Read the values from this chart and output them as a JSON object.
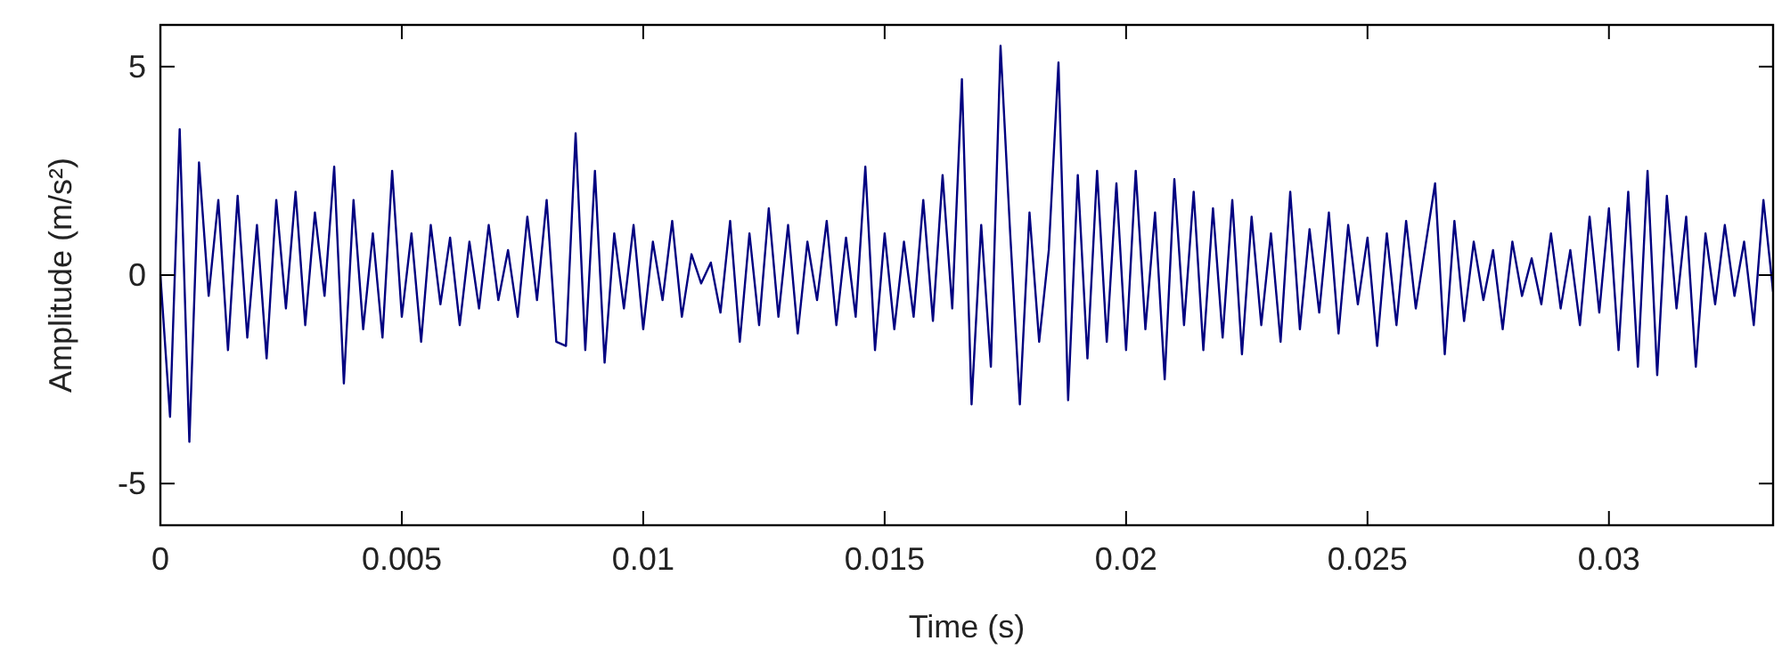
{
  "chart_data": {
    "type": "line",
    "xlabel": "Time (s)",
    "ylabel": "Amplitude (m/s²)",
    "xlim": [
      0,
      0.0334
    ],
    "ylim": [
      -6,
      6
    ],
    "xticks": [
      0,
      0.005,
      0.01,
      0.015,
      0.02,
      0.025,
      0.03
    ],
    "yticks": [
      -5,
      0,
      5
    ],
    "grid": false,
    "marker": "none",
    "line_style": "solid",
    "x": [
      0,
      0.0002,
      0.0004,
      0.0006,
      0.0008,
      0.001,
      0.0012,
      0.0014,
      0.0016,
      0.0018,
      0.002,
      0.0022,
      0.0024,
      0.0026,
      0.0028,
      0.003,
      0.0032,
      0.0034,
      0.0036,
      0.0038,
      0.004,
      0.0042,
      0.0044,
      0.0046,
      0.0048,
      0.005,
      0.0052,
      0.0054,
      0.0056,
      0.0058,
      0.006,
      0.0062,
      0.0064,
      0.0066,
      0.0068,
      0.007,
      0.0072,
      0.0074,
      0.0076,
      0.0078,
      0.008,
      0.0082,
      0.0084,
      0.0086,
      0.0088,
      0.009,
      0.0092,
      0.0094,
      0.0096,
      0.0098,
      0.01,
      0.0102,
      0.0104,
      0.0106,
      0.0108,
      0.011,
      0.0112,
      0.0114,
      0.0116,
      0.0118,
      0.012,
      0.0122,
      0.0124,
      0.0126,
      0.0128,
      0.013,
      0.0132,
      0.0134,
      0.0136,
      0.0138,
      0.014,
      0.0142,
      0.0144,
      0.0146,
      0.0148,
      0.015,
      0.0152,
      0.0154,
      0.0156,
      0.0158,
      0.016,
      0.0162,
      0.0164,
      0.0166,
      0.0168,
      0.017,
      0.0172,
      0.0174,
      0.0176,
      0.0178,
      0.018,
      0.0182,
      0.0184,
      0.0186,
      0.0188,
      0.019,
      0.0192,
      0.0194,
      0.0196,
      0.0198,
      0.02,
      0.0202,
      0.0204,
      0.0206,
      0.0208,
      0.021,
      0.0212,
      0.0214,
      0.0216,
      0.0218,
      0.022,
      0.0222,
      0.0224,
      0.0226,
      0.0228,
      0.023,
      0.0232,
      0.0234,
      0.0236,
      0.0238,
      0.024,
      0.0242,
      0.0244,
      0.0246,
      0.0248,
      0.025,
      0.0252,
      0.0254,
      0.0256,
      0.0258,
      0.026,
      0.0262,
      0.0264,
      0.0266,
      0.0268,
      0.027,
      0.0272,
      0.0274,
      0.0276,
      0.0278,
      0.028,
      0.0282,
      0.0284,
      0.0286,
      0.0288,
      0.029,
      0.0292,
      0.0294,
      0.0296,
      0.0298,
      0.03,
      0.0302,
      0.0304,
      0.0306,
      0.0308,
      0.031,
      0.0312,
      0.0314,
      0.0316,
      0.0318,
      0.032,
      0.0322,
      0.0324,
      0.0326,
      0.0328,
      0.033,
      0.0332,
      0.0334
    ],
    "series": [
      {
        "color": "#000080",
        "values": [
          0,
          -3.4,
          3.5,
          -4.0,
          2.7,
          -0.5,
          1.8,
          -1.8,
          1.9,
          -1.5,
          1.2,
          -2.0,
          1.8,
          -0.8,
          2.0,
          -1.2,
          1.5,
          -0.5,
          2.6,
          -2.6,
          1.8,
          -1.3,
          1.0,
          -1.5,
          2.5,
          -1.0,
          1.0,
          -1.6,
          1.2,
          -0.7,
          0.9,
          -1.2,
          0.8,
          -0.8,
          1.2,
          -0.6,
          0.6,
          -1.0,
          1.4,
          -0.6,
          1.8,
          -1.6,
          -1.7,
          3.4,
          -1.8,
          2.5,
          -2.1,
          1.0,
          -0.8,
          1.2,
          -1.3,
          0.8,
          -0.6,
          1.3,
          -1.0,
          0.5,
          -0.2,
          0.3,
          -0.9,
          1.3,
          -1.6,
          1.0,
          -1.2,
          1.6,
          -1.0,
          1.2,
          -1.4,
          0.8,
          -0.6,
          1.3,
          -1.2,
          0.9,
          -1.0,
          2.6,
          -1.8,
          1.0,
          -1.3,
          0.8,
          -1.0,
          1.8,
          -1.1,
          2.4,
          -0.8,
          4.7,
          -3.1,
          1.2,
          -2.2,
          5.5,
          1.0,
          -3.1,
          1.5,
          -1.6,
          0.6,
          5.1,
          -3.0,
          2.4,
          -2.0,
          2.5,
          -1.6,
          2.2,
          -1.8,
          2.5,
          -1.3,
          1.5,
          -2.5,
          2.3,
          -1.2,
          2.0,
          -1.8,
          1.6,
          -1.5,
          1.8,
          -1.9,
          1.4,
          -1.2,
          1.0,
          -1.6,
          2.0,
          -1.3,
          1.1,
          -0.9,
          1.5,
          -1.4,
          1.2,
          -0.7,
          0.9,
          -1.7,
          1.0,
          -1.2,
          1.3,
          -0.8,
          0.7,
          2.2,
          -1.9,
          1.3,
          -1.1,
          0.8,
          -0.6,
          0.6,
          -1.3,
          0.8,
          -0.5,
          0.4,
          -0.7,
          1.0,
          -0.8,
          0.6,
          -1.2,
          1.4,
          -0.9,
          1.6,
          -1.8,
          2.0,
          -2.2,
          2.5,
          -2.4,
          1.9,
          -0.8,
          1.4,
          -2.2,
          1.0,
          -0.7,
          1.2,
          -0.5,
          0.8,
          -1.2,
          1.8,
          -0.4
        ]
      }
    ]
  }
}
